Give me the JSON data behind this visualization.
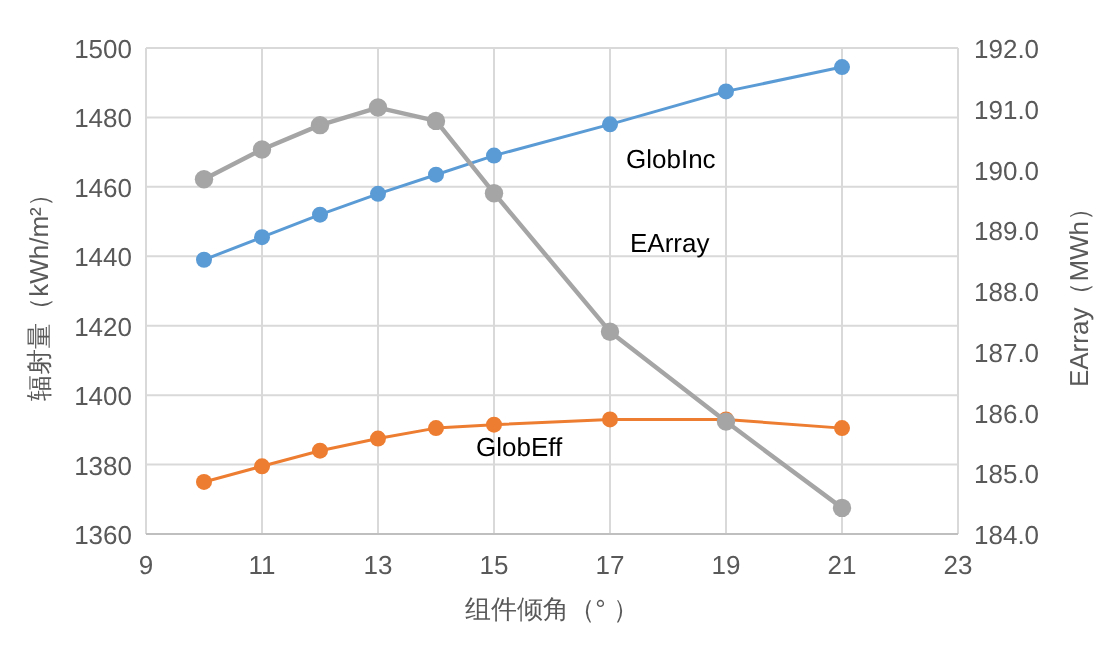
{
  "chart_data": {
    "type": "line",
    "xlabel": "组件倾角（°  ）",
    "ylabel": "辐射量（kWh/m²）",
    "y2label": "EArray（MWh）",
    "x": [
      10,
      11,
      12,
      13,
      14,
      15,
      17,
      19,
      21
    ],
    "series": [
      {
        "name": "GlobInc",
        "color": "#5b9bd5",
        "values": [
          1439,
          1445.5,
          1452,
          1458,
          1463.5,
          1469,
          1478,
          1487.5,
          1494.5
        ]
      },
      {
        "name": "EArray",
        "color": "#a5a5a5",
        "axis": "y2",
        "values": [
          189.84,
          190.33,
          190.73,
          191.02,
          190.8,
          189.61,
          187.33,
          185.85,
          184.43
        ]
      },
      {
        "name": "GlobEff",
        "color": "#ed7d31",
        "values": [
          1375,
          1379.5,
          1384,
          1387.5,
          1390.5,
          1391.5,
          1393,
          1393,
          1390.5
        ]
      }
    ],
    "xlim": [
      9,
      23
    ],
    "xticks": [
      9,
      11,
      13,
      15,
      17,
      19,
      21,
      23
    ],
    "ylim": [
      1360,
      1500
    ],
    "yticks": [
      1360,
      1380,
      1400,
      1420,
      1440,
      1460,
      1480,
      1500
    ],
    "y2lim": [
      184,
      192
    ],
    "y2ticks": [
      {
        "value": 184,
        "label": "184.0"
      },
      {
        "value": 185,
        "label": "185.0"
      },
      {
        "value": 186,
        "label": "186.0"
      },
      {
        "value": 187,
        "label": "187.0"
      },
      {
        "value": 188,
        "label": "188.0"
      },
      {
        "value": 189,
        "label": "189.0"
      },
      {
        "value": 190,
        "label": "190.0"
      },
      {
        "value": 191,
        "label": "191.0"
      },
      {
        "value": 192,
        "label": "192.0"
      }
    ],
    "grid": true,
    "legend": false,
    "marker": "circle",
    "line_style": "solid"
  }
}
